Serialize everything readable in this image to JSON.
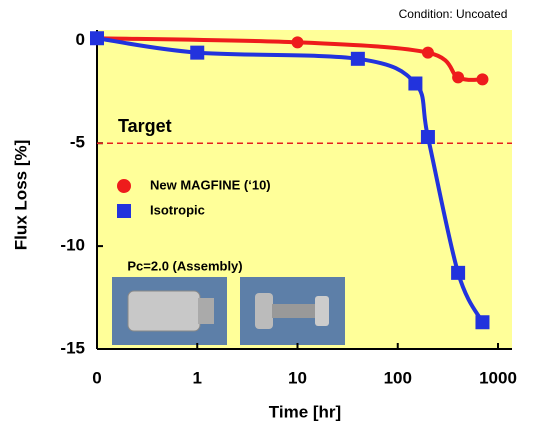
{
  "chart_data": {
    "type": "line",
    "x_label": "Time  [hr]",
    "y_label": "Flux Loss [%]",
    "annotation": "Condition: Uncoated",
    "inset_label": "Pc=2.0 (Assembly)",
    "target": {
      "label": "Target",
      "value": -5,
      "color": "#e61e1e"
    },
    "xscale": "log",
    "xlim": [
      0,
      1000
    ],
    "xticks": [
      0,
      1,
      10,
      100,
      1000
    ],
    "ylim": [
      -15,
      0.5
    ],
    "yticks": [
      0,
      -5,
      -10,
      -15
    ],
    "background": "#ffff99",
    "series": [
      {
        "name": "New MAGFINE (‘10)",
        "color": "#ee1c1c",
        "marker": "circle",
        "x": [
          0,
          10,
          200,
          400,
          700
        ],
        "values": [
          0.1,
          -0.1,
          -0.6,
          -1.8,
          -1.9
        ]
      },
      {
        "name": "Isotropic",
        "color": "#2233dd",
        "marker": "square",
        "x": [
          0,
          1,
          40,
          150,
          200,
          400,
          700
        ],
        "values": [
          0.1,
          -0.6,
          -0.9,
          -2.1,
          -4.7,
          -11.3,
          -13.7
        ]
      }
    ]
  }
}
